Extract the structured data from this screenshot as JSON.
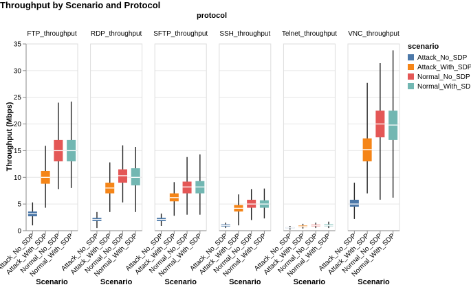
{
  "chart_data": {
    "type": "boxplot",
    "title": "Throughput by Scenario and Protocol",
    "column_header": "protocol",
    "xlabel": "Scenario",
    "ylabel": "Throughput (Mbps)",
    "ylim": [
      0,
      35
    ],
    "y_ticks": [
      "0",
      "5",
      "10",
      "15",
      "20",
      "25",
      "30",
      "35"
    ],
    "grid": true,
    "legend_title": "scenario",
    "legend_position": "right",
    "categories": [
      "Attack_No_SDP",
      "Attack_With_SDP",
      "Normal_No_SDP",
      "Normal_With_SDP"
    ],
    "colors": [
      "#4c78a8",
      "#f58518",
      "#e45756",
      "#72b7b2"
    ],
    "panels": [
      {
        "name": "FTP_throughput",
        "boxes": [
          {
            "min": 1.0,
            "q1": 2.7,
            "median": 3.2,
            "q3": 3.6,
            "max": 5.3
          },
          {
            "min": 4.3,
            "q1": 8.8,
            "median": 10.0,
            "q3": 11.2,
            "max": 15.9
          },
          {
            "min": 7.8,
            "q1": 13.0,
            "median": 15.0,
            "q3": 17.0,
            "max": 24.0
          },
          {
            "min": 8.0,
            "q1": 13.0,
            "median": 15.0,
            "q3": 17.0,
            "max": 24.2
          }
        ]
      },
      {
        "name": "RDP_throughput",
        "boxes": [
          {
            "min": 0.5,
            "q1": 1.8,
            "median": 2.1,
            "q3": 2.4,
            "max": 3.5
          },
          {
            "min": 3.5,
            "q1": 7.0,
            "median": 8.0,
            "q3": 9.0,
            "max": 12.8
          },
          {
            "min": 5.3,
            "q1": 9.0,
            "median": 10.3,
            "q3": 11.5,
            "max": 16.0
          },
          {
            "min": 3.5,
            "q1": 8.5,
            "median": 10.0,
            "q3": 11.7,
            "max": 15.7
          }
        ]
      },
      {
        "name": "SFTP_throughput",
        "boxes": [
          {
            "min": 0.9,
            "q1": 1.8,
            "median": 2.1,
            "q3": 2.4,
            "max": 3.2
          },
          {
            "min": 2.8,
            "q1": 5.5,
            "median": 6.2,
            "q3": 7.0,
            "max": 9.1
          },
          {
            "min": 3.0,
            "q1": 7.0,
            "median": 8.2,
            "q3": 9.2,
            "max": 13.8
          },
          {
            "min": 3.0,
            "q1": 7.0,
            "median": 8.2,
            "q3": 9.3,
            "max": 14.3
          }
        ]
      },
      {
        "name": "SSH_throughput",
        "boxes": [
          {
            "min": 0.5,
            "q1": 0.8,
            "median": 1.0,
            "q3": 1.2,
            "max": 1.5
          },
          {
            "min": 1.0,
            "q1": 3.6,
            "median": 4.2,
            "q3": 4.8,
            "max": 6.8
          },
          {
            "min": 2.0,
            "q1": 4.3,
            "median": 5.0,
            "q3": 5.8,
            "max": 7.8
          },
          {
            "min": 2.3,
            "q1": 4.3,
            "median": 5.0,
            "q3": 5.7,
            "max": 7.9
          }
        ]
      },
      {
        "name": "Telnet_throughput",
        "boxes": [
          {
            "min": 0.2,
            "q1": 0.45,
            "median": 0.55,
            "q3": 0.65,
            "max": 0.9
          },
          {
            "min": 0.4,
            "q1": 0.7,
            "median": 0.85,
            "q3": 1.0,
            "max": 1.3
          },
          {
            "min": 0.5,
            "q1": 0.85,
            "median": 1.0,
            "q3": 1.15,
            "max": 1.5
          },
          {
            "min": 0.5,
            "q1": 0.85,
            "median": 1.0,
            "q3": 1.2,
            "max": 1.7
          }
        ]
      },
      {
        "name": "VNC_throughput",
        "boxes": [
          {
            "min": 2.2,
            "q1": 4.5,
            "median": 5.0,
            "q3": 5.8,
            "max": 9.0
          },
          {
            "min": 7.0,
            "q1": 13.0,
            "median": 15.2,
            "q3": 17.3,
            "max": 27.7
          },
          {
            "min": 5.8,
            "q1": 17.5,
            "median": 20.0,
            "q3": 22.5,
            "max": 31.4
          },
          {
            "min": 6.2,
            "q1": 17.0,
            "median": 19.8,
            "q3": 22.5,
            "max": 33.8
          }
        ]
      }
    ]
  }
}
